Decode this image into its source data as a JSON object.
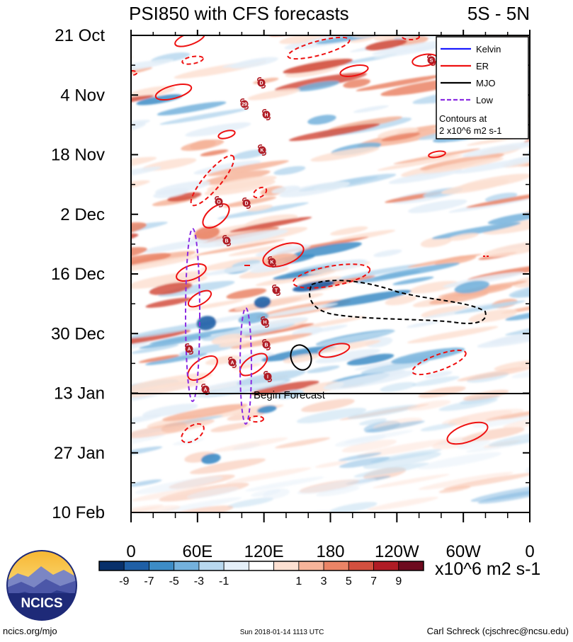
{
  "chart_data": {
    "type": "heatmap",
    "title": "PSI850 with CFS forecasts",
    "region": "5S - 5N",
    "y_labels": [
      "21 Oct",
      "4 Nov",
      "18 Nov",
      "2 Dec",
      "16 Dec",
      "30 Dec",
      "13 Jan",
      "27 Jan",
      "10 Feb"
    ],
    "x_labels": [
      "0",
      "60E",
      "120E",
      "180",
      "120W",
      "60W",
      "0"
    ],
    "forecast_label": "Begin Forecast",
    "colorbar": {
      "labels": [
        "-9",
        "-7",
        "-5",
        "-3",
        "-1",
        "1",
        "3",
        "5",
        "7",
        "9"
      ],
      "colors": [
        "#08306b",
        "#1f5fa6",
        "#3d8cc6",
        "#74b1dc",
        "#b8d8ee",
        "#e4eff8",
        "#ffffff",
        "#fde0d2",
        "#f6b49a",
        "#ea8466",
        "#d3503f",
        "#b01c25",
        "#6e0a1e"
      ],
      "units": "x10^6 m2 s-1"
    },
    "legend": {
      "entries": [
        {
          "name": "Kelvin",
          "color": "#1a1aff",
          "dash": false
        },
        {
          "name": "ER",
          "color": "#ee1111",
          "dash": false
        },
        {
          "name": "MJO",
          "color": "#000000",
          "dash": false
        },
        {
          "name": "Low",
          "color": "#8a2be2",
          "dash": true
        }
      ],
      "contour_note_1": "Contours at",
      "contour_note_2": "2 x10^6 m2 s-1"
    },
    "storm_markers": [
      "S",
      "D",
      "29",
      "H",
      "K",
      "O",
      "D",
      "A",
      "K",
      "T",
      "H",
      "B",
      "A",
      "I",
      "A",
      "B"
    ]
  },
  "footer": {
    "logo_text": "NCICS",
    "site": "ncics.org/mjo",
    "timestamp": "Sun 2018-01-14 1113 UTC",
    "author": "Carl Schreck (cjschrec@ncsu.edu)"
  },
  "colors": {
    "er": "#ee1111",
    "mjo": "#000000",
    "low": "#8a2be2",
    "kelvin": "#1a1aff"
  }
}
